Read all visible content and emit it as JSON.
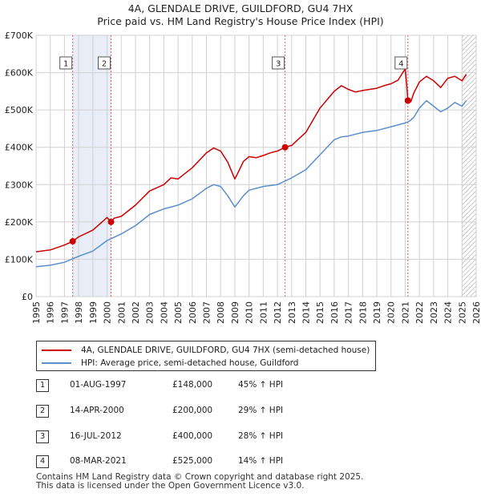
{
  "title": {
    "line1": "4A, GLENDALE DRIVE, GUILDFORD, GU4 7HX",
    "line2": "Price paid vs. HM Land Registry's House Price Index (HPI)"
  },
  "colors": {
    "property": "#cc0000",
    "hpi": "#5b8fcc",
    "shade": "#e8eef8",
    "grid": "#d0d0d0",
    "vline": "#dd6666",
    "hatch": "#aaaaaa"
  },
  "chart_data": {
    "type": "line",
    "title": "4A, GLENDALE DRIVE, GUILDFORD, GU4 7HX — Price paid vs. HM Land Registry's House Price Index (HPI)",
    "xlabel": "",
    "ylabel": "",
    "xlim": [
      1995,
      2026
    ],
    "ylim": [
      0,
      700000
    ],
    "x_ticks": [
      1995,
      1996,
      1997,
      1998,
      1999,
      2000,
      2001,
      2002,
      2003,
      2004,
      2005,
      2006,
      2007,
      2008,
      2009,
      2010,
      2011,
      2012,
      2013,
      2014,
      2015,
      2016,
      2017,
      2018,
      2019,
      2020,
      2021,
      2022,
      2023,
      2024,
      2025,
      2026
    ],
    "y_ticks": [
      {
        "value": 0,
        "label": "£0"
      },
      {
        "value": 100000,
        "label": "£100K"
      },
      {
        "value": 200000,
        "label": "£200K"
      },
      {
        "value": 300000,
        "label": "£300K"
      },
      {
        "value": 400000,
        "label": "£400K"
      },
      {
        "value": 500000,
        "label": "£500K"
      },
      {
        "value": 600000,
        "label": "£600K"
      },
      {
        "value": 700000,
        "label": "£700K"
      }
    ],
    "grid": true,
    "shaded_range": [
      1997.58,
      2000.28
    ],
    "hatched_from": 2025.0,
    "series": [
      {
        "name": "4A, GLENDALE DRIVE, GUILDFORD, GU4 7HX (semi-detached house)",
        "color": "#cc0000",
        "x": [
          1995.0,
          1996.0,
          1997.0,
          1997.58,
          1998.0,
          1999.0,
          1999.8,
          2000.0,
          2000.28,
          2000.5,
          2001.0,
          2002.0,
          2003.0,
          2004.0,
          2004.5,
          2005.0,
          2006.0,
          2007.0,
          2007.5,
          2008.0,
          2008.5,
          2009.0,
          2009.2,
          2009.6,
          2010.0,
          2010.5,
          2011.0,
          2011.5,
          2012.0,
          2012.54,
          2013.0,
          2014.0,
          2015.0,
          2016.0,
          2016.5,
          2017.0,
          2017.5,
          2018.0,
          2019.0,
          2019.5,
          2020.0,
          2020.5,
          2020.8,
          2021.0,
          2021.1,
          2021.19,
          2021.4,
          2021.6,
          2022.0,
          2022.5,
          2023.0,
          2023.5,
          2024.0,
          2024.5,
          2025.0,
          2025.3
        ],
        "values": [
          120000,
          125000,
          138000,
          148000,
          160000,
          178000,
          205000,
          212000,
          200000,
          210000,
          215000,
          245000,
          283000,
          300000,
          318000,
          315000,
          345000,
          385000,
          398000,
          390000,
          360000,
          315000,
          330000,
          362000,
          375000,
          372000,
          378000,
          385000,
          390000,
          400000,
          405000,
          440000,
          505000,
          550000,
          565000,
          555000,
          548000,
          552000,
          558000,
          565000,
          570000,
          580000,
          598000,
          610000,
          570000,
          525000,
          522000,
          545000,
          575000,
          590000,
          578000,
          560000,
          585000,
          590000,
          578000,
          595000
        ]
      },
      {
        "name": "HPI: Average price, semi-detached house, Guildford",
        "color": "#5b8fcc",
        "x": [
          1995.0,
          1996.0,
          1997.0,
          1998.0,
          1999.0,
          2000.0,
          2001.0,
          2002.0,
          2003.0,
          2004.0,
          2005.0,
          2006.0,
          2007.0,
          2007.5,
          2008.0,
          2008.5,
          2009.0,
          2009.2,
          2009.6,
          2010.0,
          2011.0,
          2012.0,
          2013.0,
          2014.0,
          2015.0,
          2016.0,
          2016.5,
          2017.0,
          2018.0,
          2019.0,
          2020.0,
          2021.0,
          2021.3,
          2021.6,
          2022.0,
          2022.5,
          2023.0,
          2023.5,
          2024.0,
          2024.5,
          2025.0,
          2025.3
        ],
        "values": [
          80000,
          84000,
          92000,
          108000,
          122000,
          150000,
          168000,
          190000,
          220000,
          235000,
          245000,
          262000,
          290000,
          300000,
          295000,
          270000,
          240000,
          250000,
          270000,
          285000,
          295000,
          300000,
          318000,
          340000,
          380000,
          420000,
          428000,
          430000,
          440000,
          445000,
          455000,
          465000,
          470000,
          480000,
          505000,
          525000,
          510000,
          495000,
          505000,
          520000,
          510000,
          525000
        ]
      }
    ],
    "sale_markers": [
      {
        "label": "1",
        "x": 1997.58,
        "value": 148000
      },
      {
        "label": "2",
        "x": 2000.28,
        "value": 200000
      },
      {
        "label": "3",
        "x": 2012.54,
        "value": 400000
      },
      {
        "label": "4",
        "x": 2021.19,
        "value": 525000
      }
    ]
  },
  "legend": {
    "property_label": "4A, GLENDALE DRIVE, GUILDFORD, GU4 7HX (semi-detached house)",
    "hpi_label": "HPI: Average price, semi-detached house, Guildford"
  },
  "sales": [
    {
      "num": "1",
      "date": "01-AUG-1997",
      "price": "£148,000",
      "hpi": "45% ↑ HPI"
    },
    {
      "num": "2",
      "date": "14-APR-2000",
      "price": "£200,000",
      "hpi": "29% ↑ HPI"
    },
    {
      "num": "3",
      "date": "16-JUL-2012",
      "price": "£400,000",
      "hpi": "28% ↑ HPI"
    },
    {
      "num": "4",
      "date": "08-MAR-2021",
      "price": "£525,000",
      "hpi": "14% ↑ HPI"
    }
  ],
  "footer": {
    "line1": "Contains HM Land Registry data © Crown copyright and database right 2025.",
    "line2": "This data is licensed under the Open Government Licence v3.0."
  }
}
